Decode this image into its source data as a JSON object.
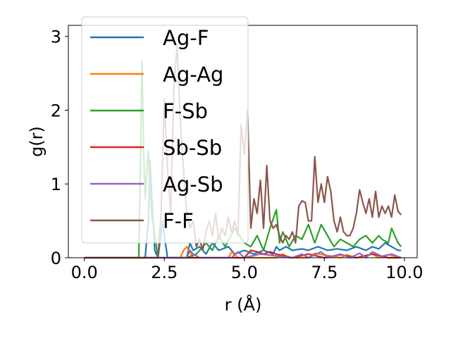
{
  "chart_data": {
    "type": "line",
    "title": "",
    "xlabel": "r (Å)",
    "ylabel": "g(r)",
    "xlim": [
      -0.5,
      10.4
    ],
    "ylim": [
      0,
      3.15
    ],
    "xticks": [
      0.0,
      2.5,
      5.0,
      7.5,
      10.0
    ],
    "xtick_labels": [
      "0.0",
      "2.5",
      "5.0",
      "7.5",
      "10.0"
    ],
    "yticks": [
      0,
      1,
      2,
      3
    ],
    "ytick_labels": [
      "0",
      "1",
      "2",
      "3"
    ],
    "legend": {
      "position": "upper-left",
      "frame": true
    },
    "grid": false,
    "series": [
      {
        "name": "Ag-F",
        "color": "#1f77b4",
        "x": [
          0,
          1.9,
          2.0,
          2.05,
          2.1,
          2.2,
          2.3,
          2.45,
          2.5,
          2.6,
          3.2,
          3.3,
          3.4,
          3.6,
          3.8,
          4.0,
          4.2,
          4.5,
          4.7,
          5.0,
          5.3,
          5.6,
          5.9,
          6.0,
          6.1,
          6.3,
          6.5,
          6.8,
          7.0,
          7.3,
          7.6,
          7.9,
          8.2,
          8.5,
          8.8,
          9.0,
          9.2,
          9.4,
          9.6,
          9.8,
          9.9
        ],
        "y": [
          0,
          0,
          0.5,
          1.32,
          0.9,
          0.1,
          0,
          0.5,
          0.3,
          0,
          0,
          0.2,
          0.1,
          0.15,
          0.05,
          0.2,
          0.1,
          0.15,
          0.05,
          0.1,
          0.05,
          0.1,
          0.05,
          0.15,
          0.1,
          0.15,
          0.1,
          0.12,
          0.1,
          0.15,
          0.1,
          0.12,
          0.1,
          0.15,
          0.1,
          0.15,
          0.12,
          0.2,
          0.15,
          0.1,
          0.1
        ]
      },
      {
        "name": "Ag-Ag",
        "color": "#ff7f0e",
        "x": [
          0,
          3.0,
          3.1,
          3.2,
          3.4,
          4.5,
          4.6,
          4.8,
          6.0,
          6.2,
          6.4,
          7.0,
          7.2,
          8.0,
          8.2,
          8.5,
          9.0,
          9.2,
          9.5,
          9.9
        ],
        "y": [
          0,
          0,
          0.1,
          0.15,
          0,
          0,
          0.08,
          0,
          0,
          0.05,
          0,
          0,
          0.06,
          0,
          0.04,
          0,
          0.05,
          0,
          0.04,
          0
        ]
      },
      {
        "name": "F-Sb",
        "color": "#2ca02c",
        "x": [
          0,
          1.7,
          1.75,
          1.8,
          1.85,
          1.9,
          2.0,
          2.1,
          2.3,
          2.5,
          2.7,
          3.2,
          3.5,
          3.8,
          4.0,
          4.2,
          4.4,
          4.7,
          5.0,
          5.2,
          5.4,
          5.6,
          5.8,
          6.0,
          6.1,
          6.2,
          6.4,
          6.6,
          6.8,
          7.0,
          7.2,
          7.4,
          7.6,
          7.8,
          8.0,
          8.2,
          8.4,
          8.6,
          8.8,
          9.0,
          9.2,
          9.3,
          9.5,
          9.6,
          9.8,
          9.9
        ],
        "y": [
          0,
          0,
          1.2,
          2.67,
          1.5,
          0.8,
          1.45,
          0.6,
          0,
          0,
          0,
          0,
          0.05,
          0.2,
          0.1,
          0.3,
          0.15,
          0.4,
          0.2,
          0.15,
          0.3,
          0.1,
          0.4,
          0.65,
          0.2,
          0.35,
          0.15,
          0.3,
          0.25,
          0.45,
          0.2,
          0.45,
          0.3,
          0.15,
          0.25,
          0.2,
          0.15,
          0.25,
          0.3,
          0.2,
          0.3,
          0.25,
          0.2,
          0.4,
          0.2,
          0.15
        ]
      },
      {
        "name": "Sb-Sb",
        "color": "#d62728",
        "x": [
          0,
          5.0,
          5.2,
          5.4,
          5.6,
          5.8,
          6.0,
          6.5,
          7.0,
          7.5,
          8.0,
          8.5,
          9.0,
          9.5,
          9.9
        ],
        "y": [
          0,
          0,
          0.1,
          0.08,
          0.05,
          0.08,
          0.05,
          0,
          0.05,
          0,
          0.04,
          0,
          0.05,
          0,
          0
        ]
      },
      {
        "name": "Ag-Sb",
        "color": "#9467bd",
        "x": [
          0,
          3.2,
          3.3,
          3.4,
          3.6,
          4.6,
          4.8,
          5.0,
          5.5,
          6.5,
          6.8,
          7.0,
          7.4,
          7.6,
          8.0,
          8.3,
          8.6,
          8.8,
          9.0,
          9.3,
          9.6,
          9.9
        ],
        "y": [
          0,
          0,
          0.1,
          0.05,
          0,
          0,
          0.08,
          0,
          0.05,
          0,
          0.05,
          0,
          0.08,
          0,
          0.05,
          0,
          0.06,
          0,
          0.08,
          0.02,
          0.05,
          0
        ]
      },
      {
        "name": "F-F",
        "color": "#8c564b",
        "x": [
          0,
          2.3,
          2.4,
          2.5,
          2.6,
          2.7,
          2.8,
          2.9,
          3.0,
          3.1,
          3.2,
          3.3,
          3.4,
          3.5,
          3.6,
          3.7,
          3.8,
          3.9,
          4.0,
          4.1,
          4.2,
          4.3,
          4.4,
          4.5,
          4.6,
          4.7,
          4.8,
          4.9,
          5.0,
          5.1,
          5.2,
          5.3,
          5.4,
          5.5,
          5.6,
          5.7,
          5.8,
          5.9,
          6.0,
          6.1,
          6.2,
          6.3,
          6.4,
          6.5,
          6.6,
          6.7,
          6.8,
          6.9,
          7.0,
          7.1,
          7.2,
          7.3,
          7.4,
          7.5,
          7.6,
          7.7,
          7.8,
          7.9,
          8.0,
          8.1,
          8.2,
          8.3,
          8.4,
          8.5,
          8.6,
          8.7,
          8.8,
          8.9,
          9.0,
          9.1,
          9.2,
          9.3,
          9.4,
          9.5,
          9.6,
          9.7,
          9.8,
          9.9
        ],
        "y": [
          0,
          0,
          0.6,
          2.15,
          1.2,
          0.6,
          2.35,
          2.87,
          1.85,
          1.2,
          0.6,
          0.4,
          0.5,
          0.15,
          0.25,
          0.1,
          0.35,
          0.5,
          0.3,
          0.6,
          0.25,
          0.4,
          0.3,
          0.55,
          0.35,
          0.5,
          0.3,
          1.8,
          1.4,
          2.0,
          0.4,
          0.8,
          0.6,
          1.05,
          0.4,
          1.25,
          0.5,
          0.4,
          0.45,
          0.3,
          0.2,
          0.3,
          0.25,
          0.35,
          0.2,
          0.7,
          0.77,
          0.75,
          0.5,
          0.5,
          1.37,
          0.75,
          1.0,
          0.75,
          1.1,
          0.9,
          0.5,
          0.35,
          0.55,
          0.35,
          0.3,
          0.3,
          0.4,
          0.6,
          0.92,
          0.75,
          0.6,
          0.8,
          0.55,
          0.9,
          0.55,
          0.7,
          0.6,
          0.7,
          0.55,
          0.85,
          0.63,
          0.58
        ]
      }
    ]
  }
}
